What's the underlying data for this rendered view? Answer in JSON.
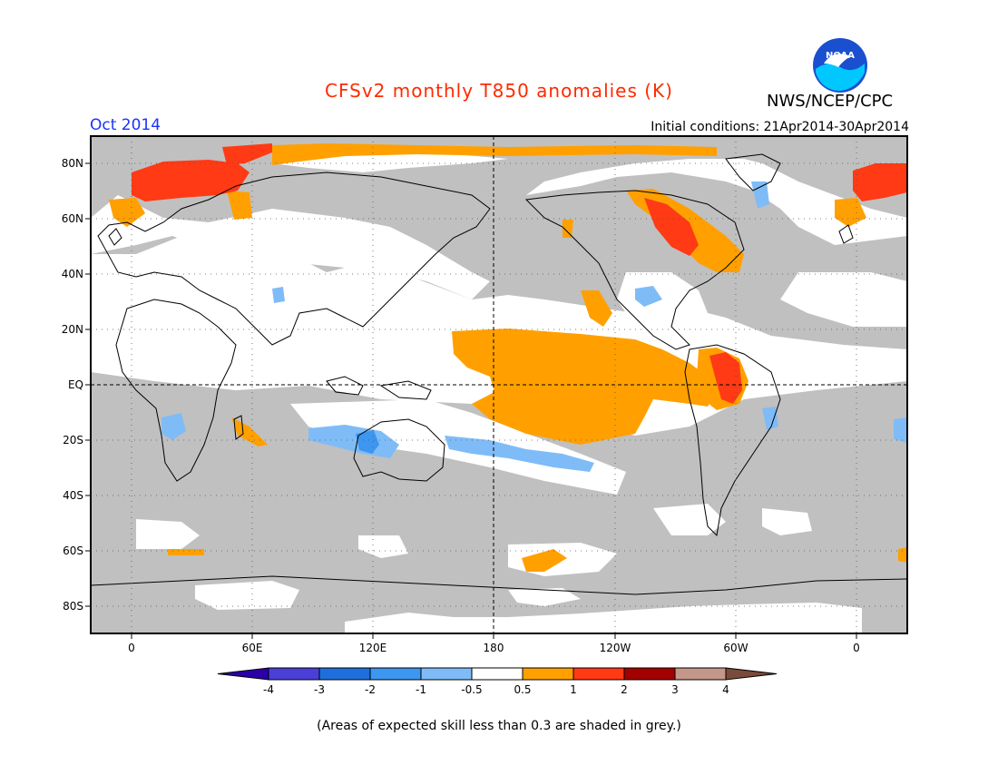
{
  "header": {
    "title": "CFSv2 monthly T850 anomalies (K)",
    "org": "NWS/NCEP/CPC",
    "logo_text": "NOAA",
    "month": "Oct 2014",
    "init_conditions": "Initial conditions: 21Apr2014-30Apr2014"
  },
  "axes": {
    "lon_ticks": [
      "0",
      "60E",
      "120E",
      "180",
      "120W",
      "60W",
      "0"
    ],
    "lat_ticks": [
      "80N",
      "60N",
      "40N",
      "20N",
      "EQ",
      "20S",
      "40S",
      "60S",
      "80S"
    ]
  },
  "colorbar": {
    "labels": [
      "-4",
      "-3",
      "-2",
      "-1",
      "-0.5",
      "0.5",
      "1",
      "2",
      "3",
      "4"
    ],
    "colors": [
      "#2b00a8",
      "#4a3fd6",
      "#1e6fdc",
      "#3d96f0",
      "#7fbcf7",
      "#ffffff",
      "#ffa000",
      "#ff3a14",
      "#a30000",
      "#c4978a",
      "#7a4a3a"
    ]
  },
  "colors": {
    "skill_grey": "#c0c0c0",
    "title": "#ff2a00",
    "month": "#1a33ff"
  },
  "footnote": "(Areas of expected skill less than 0.3 are shaded in grey.)"
}
